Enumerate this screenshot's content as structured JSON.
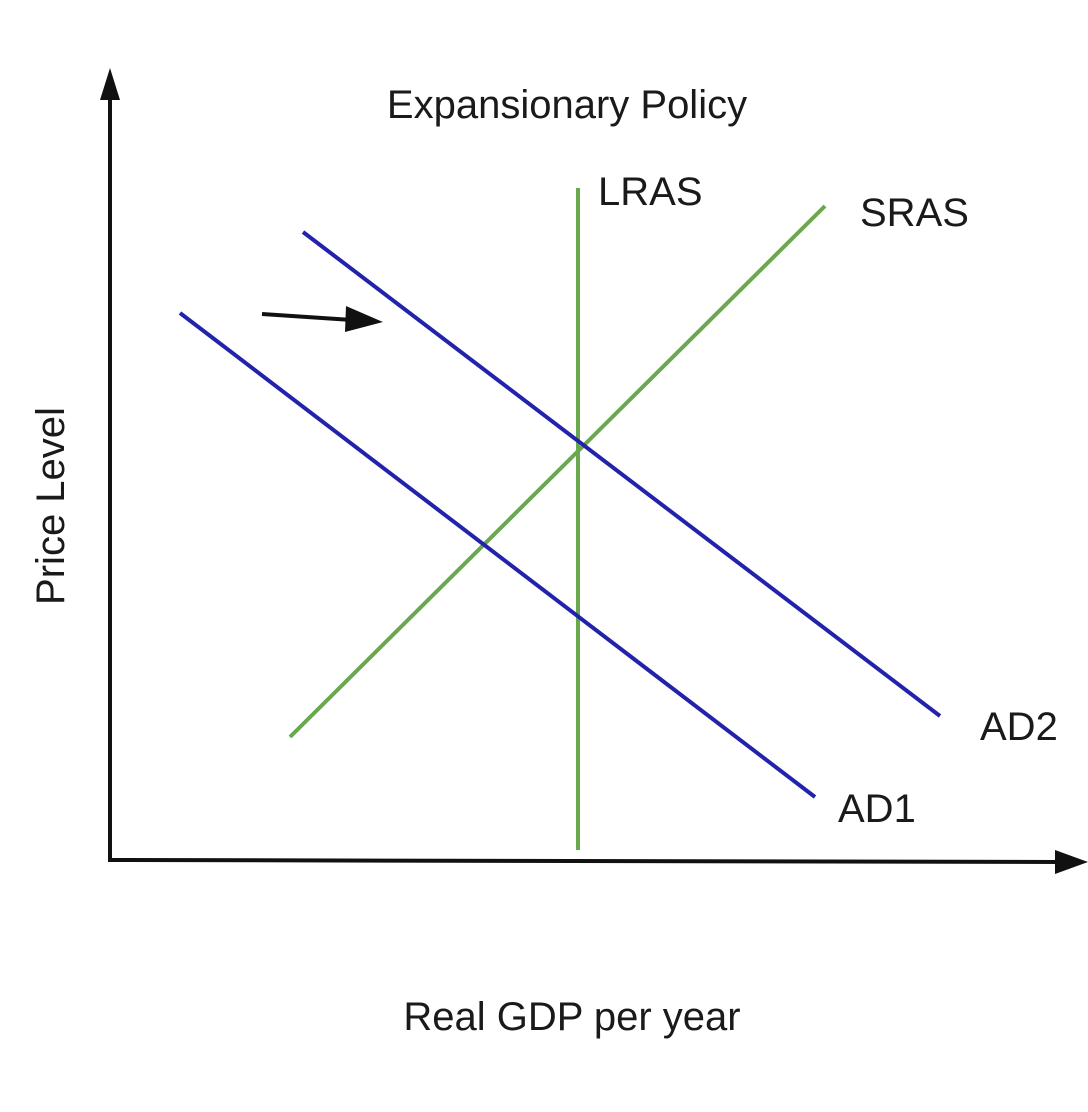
{
  "title": "Expansionary Policy",
  "axes": {
    "x_label": "Real GDP per year",
    "y_label": "Price Level"
  },
  "curves": [
    {
      "id": "lras",
      "label": "LRAS",
      "color": "#6aa84f"
    },
    {
      "id": "sras",
      "label": "SRAS",
      "color": "#6aa84f"
    },
    {
      "id": "ad1",
      "label": "AD1",
      "color": "#2222aa"
    },
    {
      "id": "ad2",
      "label": "AD2",
      "color": "#2222aa"
    }
  ],
  "shift_arrow": {
    "direction": "right",
    "color": "#111111"
  },
  "colors": {
    "axis": "#111111",
    "supply": "#6aa84f",
    "demand": "#2222aa"
  }
}
